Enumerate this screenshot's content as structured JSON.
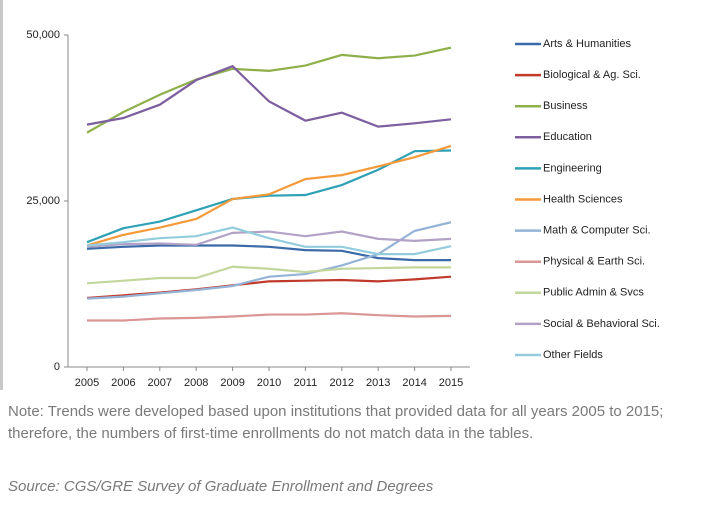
{
  "chart_data": {
    "type": "line",
    "x": [
      2005,
      2006,
      2007,
      2008,
      2009,
      2010,
      2011,
      2012,
      2013,
      2014,
      2015
    ],
    "xlim": [
      2005,
      2015
    ],
    "ylim": [
      0,
      50000
    ],
    "yticks": [
      0,
      {
        "value": 25000,
        "label": "25,000"
      },
      {
        "value": 50000,
        "label": "50,000"
      }
    ],
    "series": [
      {
        "name": "Arts & Humanities",
        "color": "#3a6aa8",
        "values": [
          17800,
          18100,
          18300,
          18300,
          18300,
          18100,
          17600,
          17500,
          16400,
          16100,
          16100
        ]
      },
      {
        "name": "Biological & Ag. Sci.",
        "color": "#c0392b",
        "values": [
          10400,
          10800,
          11200,
          11700,
          12300,
          12900,
          13000,
          13100,
          12900,
          13200,
          13600
        ]
      },
      {
        "name": "Business",
        "color": "#8db04a",
        "values": [
          35300,
          38400,
          41000,
          43300,
          44900,
          44600,
          45400,
          47000,
          46500,
          46900,
          48100
        ]
      },
      {
        "name": "Education",
        "color": "#7d5fa0",
        "values": [
          36500,
          37500,
          39500,
          43200,
          45300,
          40000,
          37100,
          38300,
          36200,
          36700,
          37300
        ]
      },
      {
        "name": "Engineering",
        "color": "#2ea1b5",
        "values": [
          18800,
          20900,
          21900,
          23600,
          25300,
          25800,
          25900,
          27400,
          29700,
          32500,
          32600
        ]
      },
      {
        "name": "Health Sciences",
        "color": "#f59a3a",
        "values": [
          18300,
          19900,
          21000,
          22300,
          25300,
          26000,
          28300,
          28900,
          30200,
          31600,
          33300
        ]
      },
      {
        "name": "Math & Computer Sci.",
        "color": "#95b3d7",
        "values": [
          10300,
          10600,
          11100,
          11600,
          12200,
          13600,
          14000,
          15300,
          17000,
          20500,
          21800
        ]
      },
      {
        "name": "Physical & Earth Sci.",
        "color": "#d99694",
        "values": [
          7000,
          7000,
          7300,
          7400,
          7600,
          7900,
          7900,
          8100,
          7800,
          7600,
          7700
        ]
      },
      {
        "name": "Public Admin & Svcs",
        "color": "#c3d69b",
        "values": [
          12600,
          13000,
          13400,
          13400,
          15100,
          14800,
          14300,
          14800,
          14900,
          15000,
          15000
        ]
      },
      {
        "name": "Social & Behavioral Sci.",
        "color": "#b3a2c7",
        "values": [
          18100,
          18500,
          18600,
          18400,
          20200,
          20400,
          19700,
          20400,
          19300,
          19000,
          19300
        ]
      },
      {
        "name": "Other Fields",
        "color": "#93cddd",
        "values": [
          18300,
          18800,
          19400,
          19700,
          21000,
          19400,
          18100,
          18100,
          17000,
          17000,
          18200
        ]
      }
    ],
    "note": "Note: Trends were developed based upon institutions that provided data for all years 2005 to 2015; therefore, the numbers of first-time enrollments do not match data in the tables.",
    "source": "Source: CGS/GRE Survey of Graduate Enrollment and Degrees"
  }
}
